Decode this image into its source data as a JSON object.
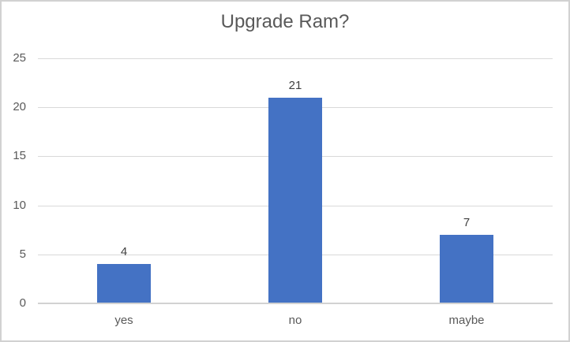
{
  "chart_data": {
    "type": "bar",
    "title": "Upgrade Ram?",
    "categories": [
      "yes",
      "no",
      "maybe"
    ],
    "values": [
      4,
      21,
      7
    ],
    "data_labels_shown": true,
    "xlabel": "",
    "ylabel": "",
    "ylim": [
      0,
      25
    ],
    "y_ticks": [
      0,
      5,
      10,
      15,
      20,
      25
    ],
    "grid": true,
    "legend": false,
    "colors": {
      "bar": "#4472C4",
      "gridline": "#D9D9D9",
      "axis_line": "#D2D2D2",
      "title_text": "#595959",
      "tick_text": "#595959",
      "value_label_text": "#404040",
      "background": "#FFFFFF",
      "frame_border": "#D1D1D1"
    }
  }
}
